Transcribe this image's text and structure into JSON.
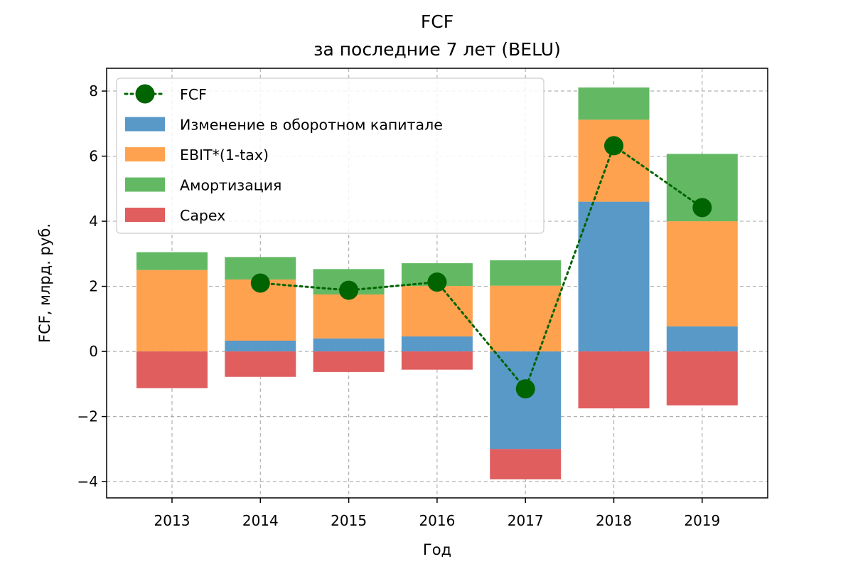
{
  "chart_data": {
    "type": "bar",
    "title": "FCF",
    "subtitle": "за последние 7 лет (BELU)",
    "xlabel": "Год",
    "ylabel": "FCF, млрд. руб.",
    "categories": [
      "2013",
      "2014",
      "2015",
      "2016",
      "2017",
      "2018",
      "2019"
    ],
    "ylim": [
      -4.5,
      8.7
    ],
    "yticks": [
      -4,
      -2,
      0,
      2,
      4,
      6,
      8
    ],
    "ytick_labels": [
      "−4",
      "−2",
      "0",
      "2",
      "4",
      "6",
      "8"
    ],
    "grid": true,
    "legend_position": "top-left",
    "series": [
      {
        "name": "Изменение в оборотном капитале",
        "type": "bar",
        "color": "#5899c8",
        "values": [
          0,
          0.33,
          0.4,
          0.46,
          -3.0,
          4.6,
          0.77
        ]
      },
      {
        "name": "EBIT*(1-tax)",
        "type": "bar",
        "color": "#ffa24f",
        "values": [
          2.5,
          1.88,
          1.35,
          1.55,
          2.02,
          2.52,
          3.23
        ]
      },
      {
        "name": "Амортизация",
        "type": "bar",
        "color": "#63b963",
        "values": [
          0.55,
          0.69,
          0.78,
          0.7,
          0.78,
          0.99,
          2.07
        ]
      },
      {
        "name": "Capex",
        "type": "bar",
        "color": "#e05e5e",
        "values": [
          -1.13,
          -0.78,
          -0.63,
          -0.56,
          -0.93,
          -1.75,
          -1.66
        ]
      },
      {
        "name": "FCF",
        "type": "line",
        "color": "#006400",
        "style": "dotted",
        "marker": "circle",
        "values": [
          null,
          2.1,
          1.88,
          2.13,
          -1.15,
          6.32,
          4.42
        ]
      }
    ]
  }
}
